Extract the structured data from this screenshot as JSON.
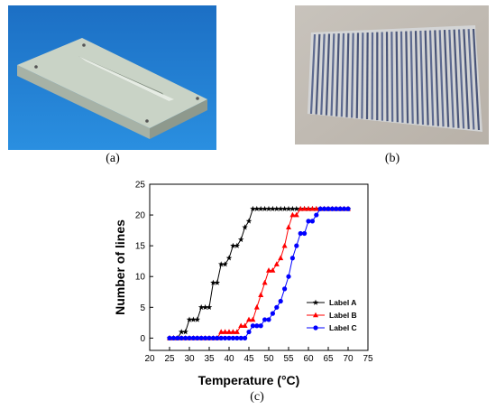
{
  "panels": {
    "a_label": "(a)",
    "b_label": "(b)",
    "c_label": "(c)"
  },
  "colors": {
    "background_a": "#1e7fd4",
    "block": "#c9d3c6",
    "Label A": "#000000",
    "Label B": "#ff0000",
    "Label C": "#0000ff"
  },
  "chart_data": {
    "type": "line",
    "xlabel": "Temperature (°C)",
    "ylabel": "Number of lines",
    "xlim": [
      20,
      75
    ],
    "ylim": [
      -2,
      25
    ],
    "xticks": [
      20,
      25,
      30,
      35,
      40,
      45,
      50,
      55,
      60,
      65,
      70,
      75
    ],
    "yticks": [
      0,
      5,
      10,
      15,
      20,
      25
    ],
    "legend": "bottom-right",
    "series": [
      {
        "name": "Label A",
        "marker": "star",
        "x": [
          25,
          26,
          27,
          28,
          29,
          30,
          31,
          32,
          33,
          34,
          35,
          36,
          37,
          38,
          39,
          40,
          41,
          42,
          43,
          44,
          45,
          46,
          47,
          48,
          49,
          50,
          51,
          52,
          53,
          54,
          55,
          56,
          57,
          58,
          59,
          60,
          61,
          62,
          63,
          64,
          65,
          66,
          67,
          68,
          69,
          70
        ],
        "y": [
          0,
          0,
          0,
          1,
          1,
          3,
          3,
          3,
          5,
          5,
          5,
          9,
          9,
          12,
          12,
          13,
          15,
          15,
          16,
          18,
          19,
          21,
          21,
          21,
          21,
          21,
          21,
          21,
          21,
          21,
          21,
          21,
          21,
          21,
          21,
          21,
          21,
          21,
          21,
          21,
          21,
          21,
          21,
          21,
          21,
          21
        ]
      },
      {
        "name": "Label B",
        "marker": "triangle",
        "x": [
          25,
          26,
          27,
          28,
          29,
          30,
          31,
          32,
          33,
          34,
          35,
          36,
          37,
          38,
          39,
          40,
          41,
          42,
          43,
          44,
          45,
          46,
          47,
          48,
          49,
          50,
          51,
          52,
          53,
          54,
          55,
          56,
          57,
          58,
          59,
          60,
          61,
          62,
          63,
          64,
          65,
          66,
          67,
          68,
          69,
          70
        ],
        "y": [
          0,
          0,
          0,
          0,
          0,
          0,
          0,
          0,
          0,
          0,
          0,
          0,
          0,
          1,
          1,
          1,
          1,
          1,
          2,
          2,
          3,
          3,
          5,
          7,
          9,
          11,
          11,
          12,
          13,
          15,
          18,
          20,
          20,
          21,
          21,
          21,
          21,
          21,
          21,
          21,
          21,
          21,
          21,
          21,
          21,
          21
        ]
      },
      {
        "name": "Label C",
        "marker": "circle",
        "x": [
          25,
          26,
          27,
          28,
          29,
          30,
          31,
          32,
          33,
          34,
          35,
          36,
          37,
          38,
          39,
          40,
          41,
          42,
          43,
          44,
          45,
          46,
          47,
          48,
          49,
          50,
          51,
          52,
          53,
          54,
          55,
          56,
          57,
          58,
          59,
          60,
          61,
          62,
          63,
          64,
          65,
          66,
          67,
          68,
          69,
          70
        ],
        "y": [
          0,
          0,
          0,
          0,
          0,
          0,
          0,
          0,
          0,
          0,
          0,
          0,
          0,
          0,
          0,
          0,
          0,
          0,
          0,
          0,
          1,
          2,
          2,
          2,
          3,
          3,
          4,
          5,
          6,
          8,
          10,
          13,
          15,
          17,
          17,
          19,
          19,
          20,
          21,
          21,
          21,
          21,
          21,
          21,
          21,
          21
        ]
      }
    ]
  }
}
